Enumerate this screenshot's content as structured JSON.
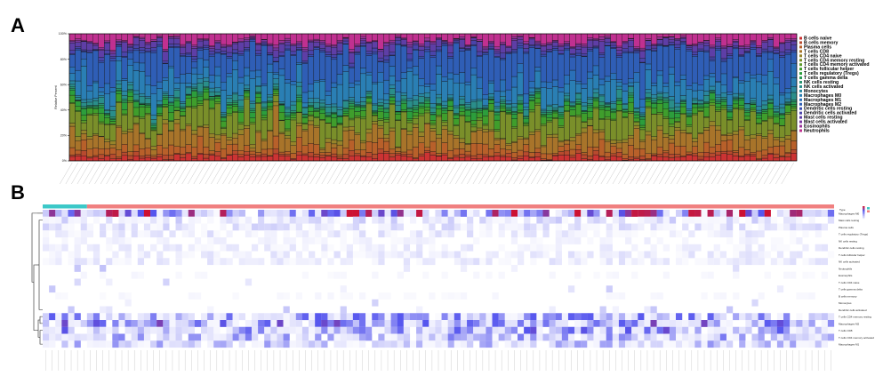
{
  "panels": {
    "a_label": "A",
    "b_label": "B"
  },
  "chart_data": [
    {
      "type": "bar",
      "stacked": true,
      "n_samples": 125,
      "ylabel": "Relative Percent",
      "yticks": [
        "0%",
        "20%",
        "40%",
        "60%",
        "80%",
        "100%"
      ],
      "ylim": [
        0,
        1
      ],
      "legend_position": "right",
      "series": [
        {
          "name": "B cells naive",
          "color": "#cc3333",
          "mean_fraction": 0.03
        },
        {
          "name": "B cells memory",
          "color": "#b84a2e",
          "mean_fraction": 0.02
        },
        {
          "name": "Plasma cells",
          "color": "#b8602a",
          "mean_fraction": 0.05
        },
        {
          "name": "T cells CD8",
          "color": "#a8742a",
          "mean_fraction": 0.1
        },
        {
          "name": "T cells CD4 naive",
          "color": "#96842a",
          "mean_fraction": 0.02
        },
        {
          "name": "T cells CD4 memory resting",
          "color": "#7a8f2a",
          "mean_fraction": 0.13
        },
        {
          "name": "T cells CD4 memory activated",
          "color": "#5c9a2a",
          "mean_fraction": 0.01
        },
        {
          "name": "T cells follicular helper",
          "color": "#3f9e2c",
          "mean_fraction": 0.04
        },
        {
          "name": "T cells regulatory (Tregs)",
          "color": "#2c9e3c",
          "mean_fraction": 0.03
        },
        {
          "name": "T cells gamma delta",
          "color": "#2a9a55",
          "mean_fraction": 0.01
        },
        {
          "name": "NK cells resting",
          "color": "#2a9470",
          "mean_fraction": 0.01
        },
        {
          "name": "NK cells activated",
          "color": "#2a8e8a",
          "mean_fraction": 0.03
        },
        {
          "name": "Monocytes",
          "color": "#2a88a0",
          "mean_fraction": 0.02
        },
        {
          "name": "Macrophages M0",
          "color": "#2a7fb4",
          "mean_fraction": 0.12
        },
        {
          "name": "Macrophages M1",
          "color": "#2a70b8",
          "mean_fraction": 0.05
        },
        {
          "name": "Macrophages M2",
          "color": "#2f5eb6",
          "mean_fraction": 0.18
        },
        {
          "name": "Dendritic cells resting",
          "color": "#3a4eb0",
          "mean_fraction": 0.01
        },
        {
          "name": "Dendritic cells activated",
          "color": "#4a44aa",
          "mean_fraction": 0.02
        },
        {
          "name": "Mast cells resting",
          "color": "#5e3ea6",
          "mean_fraction": 0.04
        },
        {
          "name": "Mast cells activated",
          "color": "#7a38a2",
          "mean_fraction": 0.01
        },
        {
          "name": "Eosinophils",
          "color": "#9a3498",
          "mean_fraction": 0.01
        },
        {
          "name": "Neutrophils",
          "color": "#c03090",
          "mean_fraction": 0.06
        }
      ]
    },
    {
      "type": "heatmap",
      "n_columns": 125,
      "dendrogram": "left",
      "legend_title": "Type",
      "rows": [
        "Macrophages M0",
        "Mast cells resting",
        "Plasma cells",
        "T cells regulatory (Tregs)",
        "NK cells resting",
        "Dendritic cells resting",
        "T cells follicular helper",
        "NK cells activated",
        "Neutrophils",
        "Eosinophils",
        "T cells CD4 naive",
        "T cells gamma delta",
        "B cells memory",
        "Monocytes",
        "Dendritic cells activated",
        "T cells CD4 memory resting",
        "Macrophages M2",
        "T cells CD8",
        "T cells CD4 memory activated",
        "Macrophages M1"
      ],
      "row_mean_intensity": [
        0.55,
        0.12,
        0.1,
        0.08,
        0.04,
        0.06,
        0.07,
        0.07,
        0.01,
        0.02,
        0.0,
        0.0,
        0.02,
        0.0,
        0.0,
        0.35,
        0.4,
        0.38,
        0.28,
        0.22
      ],
      "type_bar": {
        "groups": [
          {
            "name": "Normal",
            "color": "#3cc8c8",
            "count": 7
          },
          {
            "name": "Tumor",
            "color": "#f08080",
            "count": 118
          }
        ]
      },
      "colors": {
        "low": "#ffffff",
        "mid": "#5555ee",
        "high": "#cc1133"
      }
    }
  ]
}
